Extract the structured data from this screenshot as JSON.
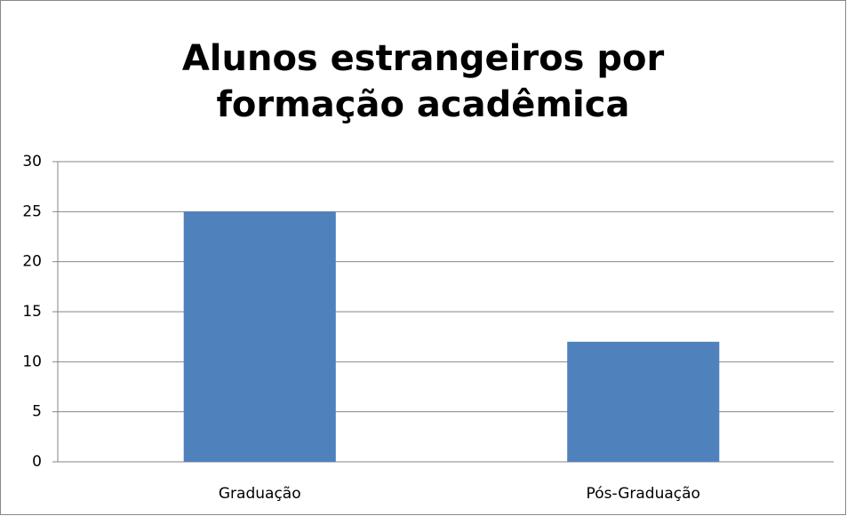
{
  "chart_data": {
    "type": "bar",
    "title": "Alunos estrangeiros por formação acadêmica",
    "categories": [
      "Graduação",
      "Pós-Graduação"
    ],
    "values": [
      25,
      12
    ],
    "color": "#4f81bd",
    "ylim": [
      0,
      30
    ],
    "yticks": [
      0,
      5,
      10,
      15,
      20,
      25,
      30
    ],
    "grid": true
  }
}
